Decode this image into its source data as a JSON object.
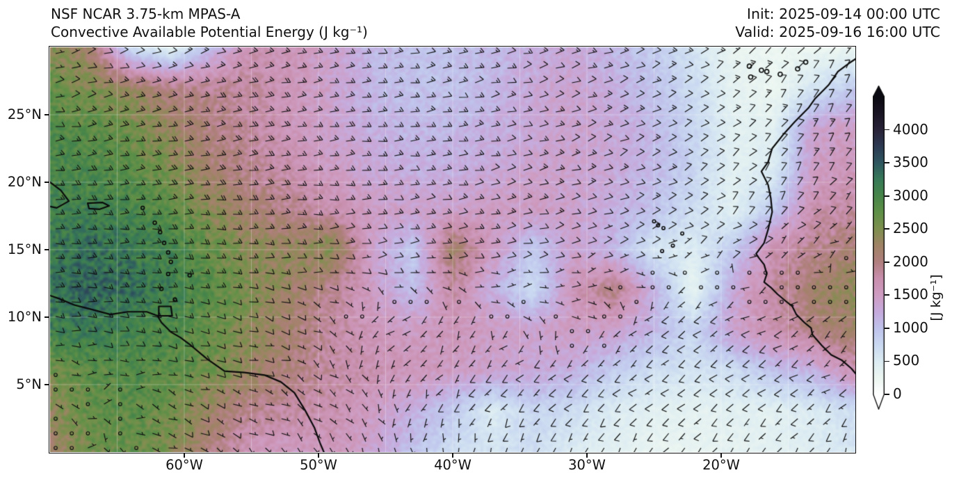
{
  "header": {
    "title_line1": "NSF NCAR 3.75-km MPAS-A",
    "title_line2": "Convective Available Potential Energy (J kg⁻¹)",
    "init_line": "Init: 2025-09-14 00:00 UTC",
    "valid_line": "Valid: 2025-09-16 16:00 UTC"
  },
  "axes": {
    "x_ticks": [
      {
        "label": "60°W",
        "lon": -60
      },
      {
        "label": "50°W",
        "lon": -50
      },
      {
        "label": "40°W",
        "lon": -40
      },
      {
        "label": "30°W",
        "lon": -30
      },
      {
        "label": "20°W",
        "lon": -20
      }
    ],
    "y_ticks": [
      {
        "label": "25°N",
        "lat": 25
      },
      {
        "label": "20°N",
        "lat": 20
      },
      {
        "label": "15°N",
        "lat": 15
      },
      {
        "label": "10°N",
        "lat": 10
      },
      {
        "label": "5°N",
        "lat": 5
      }
    ]
  },
  "colorbar": {
    "label": "[J kg⁻¹]",
    "ticks": [
      0,
      500,
      1000,
      1500,
      2000,
      2500,
      3000,
      3500,
      4000
    ],
    "min": 0,
    "max": 4500,
    "extend": "both"
  },
  "chart_data": {
    "type": "heatmap",
    "variable": "Convective Available Potential Energy",
    "units": "J kg⁻¹",
    "model": "NSF NCAR 3.75-km MPAS-A",
    "init": "2025-09-14 00:00 UTC",
    "valid": "2025-09-16 16:00 UTC",
    "extent": {
      "lon_min": -70,
      "lon_max": -10,
      "lat_min": 0,
      "lat_max": 30
    },
    "overlay": "10-m wind barbs (knots), calm shown as open circles",
    "colormap_stops": [
      [
        0,
        "#ffffff"
      ],
      [
        250,
        "#ecf6f1"
      ],
      [
        500,
        "#dcecf2"
      ],
      [
        750,
        "#cad9f1"
      ],
      [
        1000,
        "#bfc3ec"
      ],
      [
        1250,
        "#c6aadd"
      ],
      [
        1500,
        "#cf9dc2"
      ],
      [
        1750,
        "#c98fae"
      ],
      [
        2000,
        "#b07f7e"
      ],
      [
        2250,
        "#a08366"
      ],
      [
        2500,
        "#7e8f4e"
      ],
      [
        2750,
        "#5f9047"
      ],
      [
        3000,
        "#478549"
      ],
      [
        3250,
        "#377a58"
      ],
      [
        3500,
        "#2e5660"
      ],
      [
        3750,
        "#2c3a52"
      ],
      [
        4000,
        "#292339"
      ],
      [
        4250,
        "#191423"
      ],
      [
        4500,
        "#0b0911"
      ]
    ],
    "grid": {
      "lons": [
        -70,
        -67,
        -64,
        -61,
        -58,
        -55,
        -52,
        -49,
        -46,
        -43,
        -40,
        -37,
        -34,
        -31,
        -28,
        -25,
        -22,
        -19,
        -16,
        -13,
        -10
      ],
      "lats": [
        30,
        27,
        24,
        21,
        18,
        15,
        12,
        9,
        6,
        3,
        0
      ],
      "cape": [
        [
          2500,
          2100,
          700,
          400,
          1100,
          1700,
          1600,
          1400,
          1100,
          1000,
          1000,
          1100,
          1200,
          1300,
          1100,
          900,
          600,
          300,
          250,
          250,
          300
        ],
        [
          2700,
          2500,
          2300,
          2000,
          1900,
          1800,
          1600,
          1400,
          1100,
          1000,
          1000,
          1100,
          1300,
          1400,
          1200,
          1000,
          700,
          350,
          250,
          600,
          900
        ],
        [
          2900,
          2800,
          2600,
          2300,
          2000,
          1800,
          1600,
          1400,
          1200,
          1100,
          1100,
          1200,
          1300,
          1400,
          1300,
          1100,
          800,
          400,
          400,
          1400,
          1500
        ],
        [
          3000,
          2900,
          2800,
          2500,
          2100,
          1900,
          1700,
          1500,
          1300,
          1200,
          1200,
          1300,
          1400,
          1400,
          1300,
          1100,
          800,
          400,
          500,
          1500,
          1600
        ],
        [
          3100,
          3100,
          3000,
          2800,
          2400,
          2100,
          1900,
          1700,
          1500,
          1400,
          1400,
          1500,
          1500,
          1400,
          1200,
          1000,
          700,
          400,
          900,
          1700,
          1800
        ],
        [
          3200,
          3300,
          3200,
          3000,
          2700,
          2400,
          2300,
          2500,
          1400,
          900,
          2200,
          1500,
          900,
          1400,
          1100,
          600,
          500,
          900,
          1700,
          1900,
          2100
        ],
        [
          3300,
          3400,
          3300,
          3100,
          2800,
          2500,
          2200,
          1900,
          1500,
          1000,
          1800,
          1200,
          700,
          1600,
          2000,
          1200,
          300,
          1300,
          1800,
          2200,
          2400
        ],
        [
          3100,
          3200,
          3000,
          2900,
          2700,
          2400,
          2100,
          1800,
          1600,
          1500,
          1600,
          1500,
          1400,
          1500,
          1400,
          1100,
          800,
          1400,
          1700,
          2000,
          2200
        ],
        [
          2600,
          2800,
          2900,
          2800,
          2600,
          2300,
          2000,
          1800,
          1700,
          1600,
          1500,
          1400,
          1300,
          1200,
          900,
          700,
          600,
          700,
          1000,
          1200,
          1700
        ],
        [
          2400,
          2700,
          2800,
          2600,
          2200,
          1900,
          1800,
          1700,
          1500,
          1200,
          900,
          500,
          800,
          700,
          500,
          400,
          350,
          400,
          400,
          500,
          700
        ],
        [
          2200,
          2600,
          2700,
          2500,
          2000,
          1600,
          1500,
          1600,
          1400,
          1000,
          700,
          600,
          700,
          500,
          400,
          300,
          300,
          350,
          400,
          450,
          600
        ]
      ]
    },
    "wind_barbs": {
      "lons": [
        -70,
        -65,
        -60,
        -55,
        -50,
        -45,
        -40,
        -35,
        -30,
        -25,
        -20,
        -15,
        -10
      ],
      "lats": [
        30,
        25,
        20,
        15,
        10,
        5,
        0
      ],
      "u_kt": [
        [
          -5,
          -8,
          -12,
          -15,
          -15,
          -14,
          -13,
          -12,
          -12,
          -12,
          -10,
          -8,
          -6
        ],
        [
          -10,
          -16,
          -17,
          -17,
          -16,
          -15,
          -14,
          -13,
          -12,
          -11,
          -9,
          -7,
          -5
        ],
        [
          -16,
          -17,
          -18,
          -17,
          -16,
          -15,
          -14,
          -12,
          -11,
          -10,
          -8,
          -6,
          -5
        ],
        [
          -15,
          -16,
          -16,
          -14,
          -12,
          -10,
          -12,
          -10,
          -8,
          -7,
          -5,
          -5,
          -4
        ],
        [
          -12,
          -13,
          -12,
          -10,
          -4,
          4,
          2,
          -2,
          -4,
          5,
          6,
          4,
          2
        ],
        [
          -1,
          -2,
          -6,
          -7,
          -5,
          0,
          4,
          6,
          7,
          8,
          8,
          7,
          5
        ],
        [
          -1,
          -2,
          -5,
          -5,
          -4,
          -2,
          0,
          2,
          3,
          4,
          4,
          4,
          3
        ]
      ],
      "v_kt": [
        [
          -2,
          -3,
          -5,
          -4,
          -3,
          -2,
          -2,
          -3,
          -4,
          -5,
          -6,
          -8,
          -9
        ],
        [
          -2,
          -3,
          -3,
          -3,
          -2,
          -2,
          -2,
          -3,
          -4,
          -5,
          -7,
          -9,
          -10
        ],
        [
          -1,
          -2,
          -2,
          -2,
          -1,
          -1,
          -2,
          -3,
          -4,
          -5,
          -7,
          -9,
          -9
        ],
        [
          0,
          0,
          1,
          1,
          0,
          -2,
          -1,
          -2,
          -3,
          -3,
          -4,
          -3,
          -2
        ],
        [
          1,
          2,
          2,
          2,
          3,
          4,
          3,
          2,
          1,
          5,
          4,
          3,
          2
        ],
        [
          0,
          0,
          2,
          2,
          3,
          4,
          5,
          6,
          6,
          6,
          6,
          5,
          4
        ],
        [
          0,
          1,
          3,
          4,
          5,
          6,
          7,
          7,
          7,
          7,
          6,
          6,
          5
        ]
      ]
    },
    "coastlines": {
      "south_america": [
        [
          -70,
          11.6
        ],
        [
          -69.4,
          11.4
        ],
        [
          -68.2,
          10.9
        ],
        [
          -67,
          10.6
        ],
        [
          -65.5,
          10.2
        ],
        [
          -64.2,
          10.4
        ],
        [
          -62.8,
          10.4
        ],
        [
          -62,
          10.1
        ],
        [
          -61.7,
          9.6
        ],
        [
          -61,
          8.9
        ],
        [
          -60.3,
          8.5
        ],
        [
          -59.5,
          7.9
        ],
        [
          -58.3,
          6.9
        ],
        [
          -57,
          6.0
        ],
        [
          -55.5,
          5.9
        ],
        [
          -54,
          5.7
        ],
        [
          -52.8,
          5.2
        ],
        [
          -51.8,
          4.4
        ],
        [
          -51,
          3.1
        ],
        [
          -50.3,
          1.8
        ],
        [
          -49.9,
          0.7
        ],
        [
          -49.6,
          0
        ]
      ],
      "africa": [
        [
          -9.8,
          30
        ],
        [
          -9.9,
          29.2
        ],
        [
          -10.5,
          28.8
        ],
        [
          -11.3,
          28.2
        ],
        [
          -12,
          27.2
        ],
        [
          -13,
          26.2
        ],
        [
          -13.5,
          25.5
        ],
        [
          -14.5,
          24.5
        ],
        [
          -15.4,
          23.5
        ],
        [
          -16.2,
          22.5
        ],
        [
          -16.5,
          21.5
        ],
        [
          -17,
          20.8
        ],
        [
          -16.5,
          19.8
        ],
        [
          -16.3,
          18.8
        ],
        [
          -16.2,
          17.8
        ],
        [
          -16.5,
          16.5
        ],
        [
          -16.8,
          15.5
        ],
        [
          -17.4,
          14.7
        ],
        [
          -17.2,
          14.4
        ],
        [
          -16.8,
          13.9
        ],
        [
          -16.6,
          13.2
        ],
        [
          -16.8,
          12.6
        ],
        [
          -16.3,
          12.2
        ],
        [
          -15.8,
          11.7
        ],
        [
          -15.2,
          11.2
        ],
        [
          -14.7,
          10.8
        ],
        [
          -14.4,
          10.2
        ],
        [
          -13.8,
          9.6
        ],
        [
          -13.3,
          9.2
        ],
        [
          -13.2,
          8.7
        ],
        [
          -12.5,
          7.9
        ],
        [
          -11.8,
          7.2
        ],
        [
          -11,
          6.8
        ],
        [
          -10.3,
          6.2
        ],
        [
          -9.8,
          5.6
        ]
      ],
      "hispaniola_east": [
        [
          -70,
          20.0
        ],
        [
          -69.2,
          19.4
        ],
        [
          -68.6,
          18.6
        ],
        [
          -69.5,
          18.1
        ],
        [
          -70,
          18.2
        ]
      ],
      "puerto_rico": [
        [
          -67.2,
          18.45
        ],
        [
          -66.1,
          18.5
        ],
        [
          -65.6,
          18.25
        ],
        [
          -66.3,
          18.0
        ],
        [
          -67.1,
          18.05
        ],
        [
          -67.2,
          18.45
        ]
      ],
      "trinidad": [
        [
          -61.9,
          10.8
        ],
        [
          -61.0,
          10.8
        ],
        [
          -60.9,
          10.1
        ],
        [
          -61.9,
          10.1
        ],
        [
          -61.9,
          10.8
        ]
      ],
      "lesser_antilles_islands": [
        [
          -63.1,
          18.1
        ],
        [
          -62.2,
          17.0
        ],
        [
          -61.8,
          16.3
        ],
        [
          -61.5,
          15.5
        ],
        [
          -61.2,
          14.8
        ],
        [
          -61.0,
          14.1
        ],
        [
          -61.2,
          13.2
        ],
        [
          -59.6,
          13.1
        ],
        [
          -61.7,
          12.1
        ],
        [
          -60.7,
          11.3
        ]
      ],
      "canary_islands": [
        [
          -17.9,
          28.6
        ],
        [
          -17.0,
          28.3
        ],
        [
          -16.6,
          28.2
        ],
        [
          -15.6,
          28.0
        ],
        [
          -14.3,
          28.4
        ],
        [
          -13.7,
          28.9
        ],
        [
          -17.8,
          27.8
        ]
      ],
      "cape_verde_islands": [
        [
          -25.0,
          17.1
        ],
        [
          -24.7,
          16.8
        ],
        [
          -24.3,
          16.6
        ],
        [
          -22.9,
          16.2
        ],
        [
          -23.6,
          15.3
        ],
        [
          -24.4,
          14.9
        ]
      ]
    },
    "style": {
      "coast_color": "#0a0a0a",
      "barb_color": "#0d0d0d",
      "frame_color": "#111111",
      "graticule_color": "rgba(255,255,255,0.30)",
      "graticule_interval_deg": 5
    }
  }
}
